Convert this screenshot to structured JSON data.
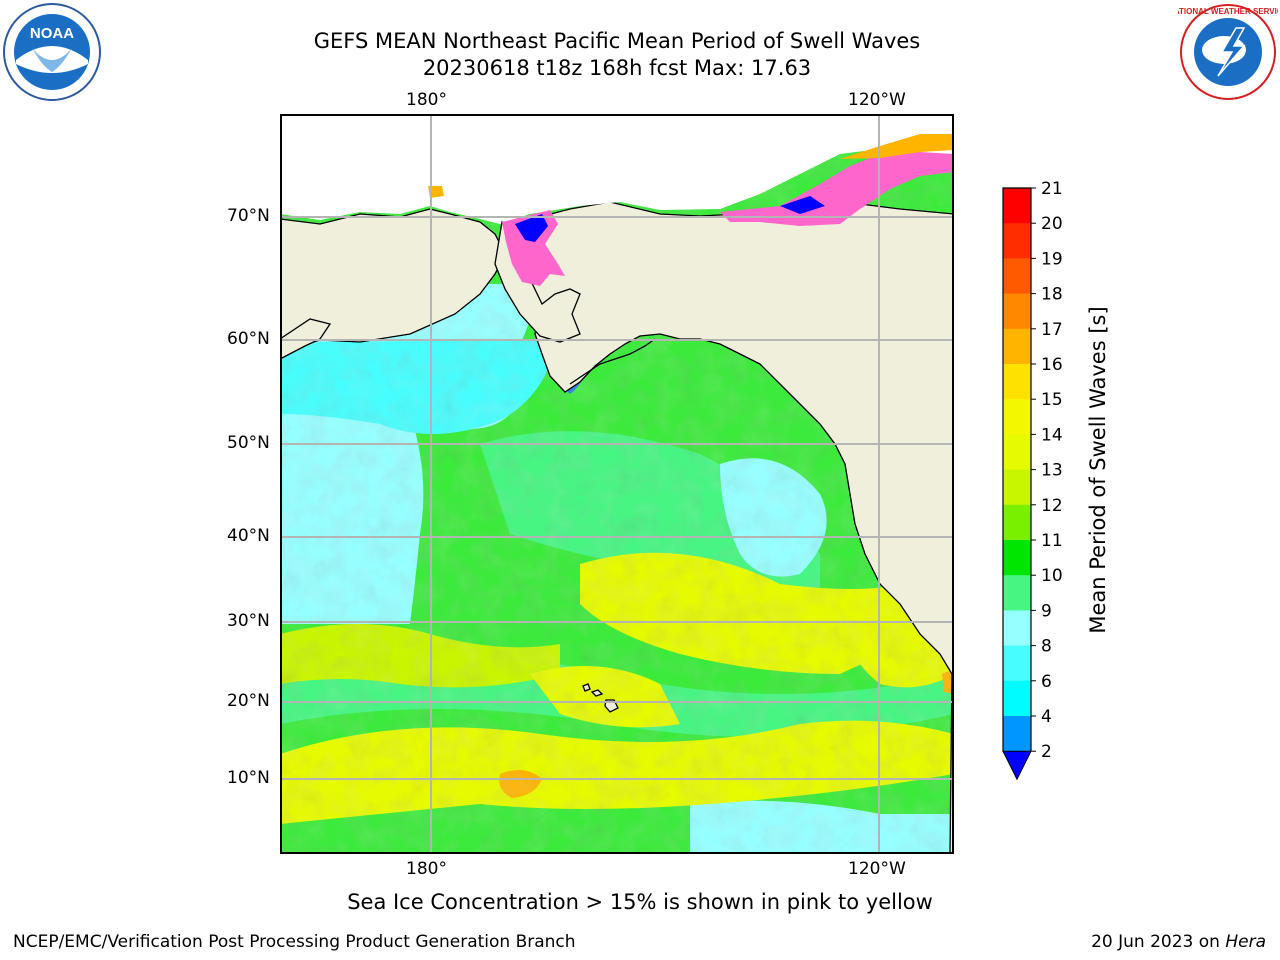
{
  "title": "GEFS MEAN Northeast Pacific Mean Period of Swell Waves",
  "subtitle": "20230618 t18z 168h fcst   Max: 17.63",
  "map": {
    "lon_labels_top": [
      "180°",
      "120°W"
    ],
    "lon_labels_bottom": [
      "180°",
      "120°W"
    ],
    "lat_labels": [
      "70°N",
      "60°N",
      "50°N",
      "40°N",
      "30°N",
      "20°N",
      "10°N"
    ]
  },
  "colorbar": {
    "title": "Mean Period of Swell Waves [s]",
    "ticks": [
      "21",
      "20",
      "19",
      "18",
      "17",
      "16",
      "15",
      "14",
      "13",
      "12",
      "11",
      "10",
      "9",
      "8",
      "6",
      "4",
      "2"
    ],
    "colors": [
      "#ff0000",
      "#ff2d00",
      "#ff5a00",
      "#ff8800",
      "#ffb400",
      "#ffe100",
      "#f3f700",
      "#e6fa00",
      "#c8f500",
      "#78f000",
      "#00e600",
      "#46f582",
      "#96ffff",
      "#48fdfd",
      "#00fcfc",
      "#0096ff",
      "#0000ff"
    ],
    "extend_color": "#0000ff"
  },
  "colors": {
    "land": "#efefdc",
    "grid": "#b4b4b4",
    "ocean_green": "#3cea3c",
    "ocean_cyan": "#48fdfd",
    "ocean_yellow": "#e6fa00",
    "ice_pink": "#ff66cc",
    "ice_blue": "#0000ff"
  },
  "caption": "Sea Ice Concentration > 15% is shown in pink to yellow",
  "footer_left": "NCEP/EMC/Verification Post Processing Product Generation Branch",
  "footer_date": "20 Jun 2023 on ",
  "footer_machine": "Hera",
  "logos": {
    "noaa_text": "NOAA",
    "nws_text": "NATIONAL WEATHER SERVICE"
  }
}
